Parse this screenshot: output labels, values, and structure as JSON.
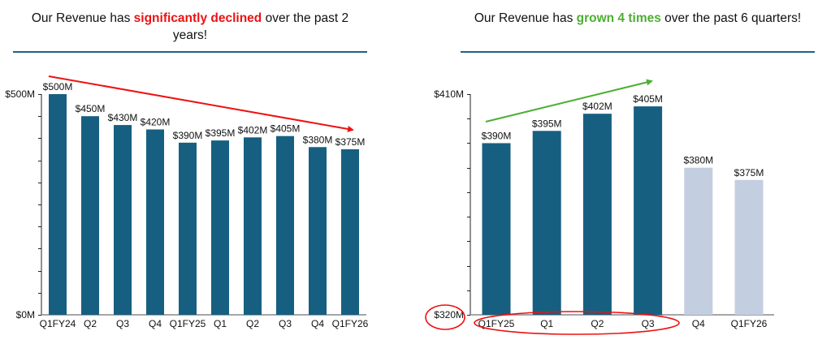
{
  "colors": {
    "bar_dark": "#175f80",
    "bar_light": "#c3cfe0",
    "axis": "#555555",
    "red": "#ee1111",
    "green": "#4caf32",
    "rule": "#1f6284"
  },
  "icons": {
    "left_arrow": "trend-down-arrow-icon",
    "right_arrow": "trend-up-arrow-icon",
    "ellipse": "highlight-ellipse"
  },
  "left_panel": {
    "title_pre": "Our Revenue has ",
    "title_highlight": "significantly declined",
    "title_post": " over the past 2 years!"
  },
  "right_panel": {
    "title_pre": "Our Revenue has ",
    "title_highlight": "grown 4 times",
    "title_post": " over the past 6 quarters!"
  },
  "chart_data": [
    {
      "type": "bar",
      "title": "Our Revenue has significantly declined over the past 2 years!",
      "xlabel": "",
      "ylabel": "",
      "categories": [
        "Q1FY24",
        "Q2",
        "Q3",
        "Q4",
        "Q1FY25",
        "Q1",
        "Q2",
        "Q3",
        "Q4",
        "Q1FY26"
      ],
      "values": [
        500,
        450,
        430,
        420,
        390,
        395,
        402,
        405,
        380,
        375
      ],
      "data_labels": [
        "$500M",
        "$450M",
        "$430M",
        "$420M",
        "$390M",
        "$395M",
        "$402M",
        "$405M",
        "$380M",
        "$375M"
      ],
      "bar_styles": [
        "dark",
        "dark",
        "dark",
        "dark",
        "dark",
        "dark",
        "dark",
        "dark",
        "dark",
        "dark"
      ],
      "ylim": [
        0,
        500
      ],
      "ytick_step": 50,
      "ytick_labels": {
        "min": "$0M",
        "max": "$500M"
      },
      "grid": false,
      "annotation": {
        "type": "arrow",
        "direction": "down",
        "color": "#ee1111"
      }
    },
    {
      "type": "bar",
      "title": "Our Revenue has grown 4 times over the past 6 quarters!",
      "xlabel": "",
      "ylabel": "",
      "categories": [
        "Q1FY25",
        "Q1",
        "Q2",
        "Q3",
        "Q4",
        "Q1FY26"
      ],
      "values": [
        390,
        395,
        402,
        405,
        380,
        375
      ],
      "data_labels": [
        "$390M",
        "$395M",
        "$402M",
        "$405M",
        "$380M",
        "$375M"
      ],
      "bar_styles": [
        "dark",
        "dark",
        "dark",
        "dark",
        "light",
        "light"
      ],
      "ylim": [
        320,
        410
      ],
      "ytick_step": 10,
      "ytick_labels": {
        "min": "$320M",
        "max": "$410M"
      },
      "grid": false,
      "annotation": {
        "type": "arrow",
        "direction": "up",
        "color": "#4caf32",
        "circled": [
          "y-axis-min",
          "Q1FY25",
          "Q1",
          "Q2",
          "Q3"
        ]
      }
    }
  ]
}
